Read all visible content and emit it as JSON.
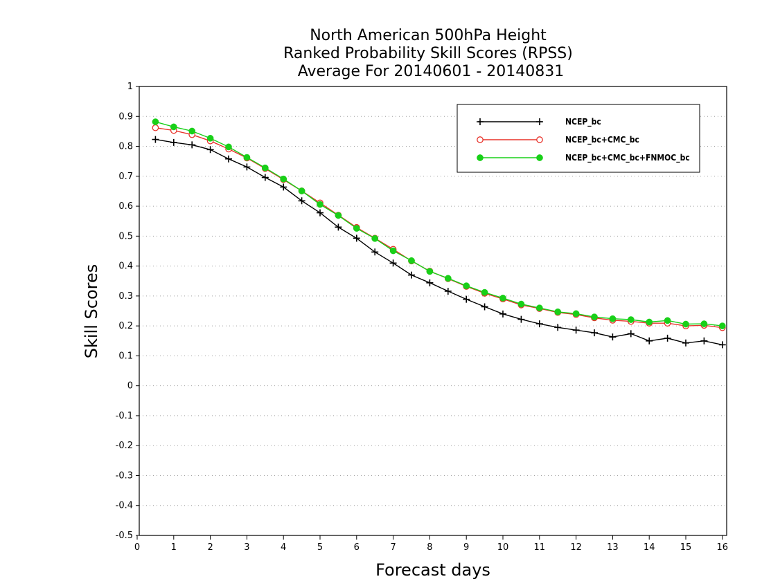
{
  "colors": {
    "background": "#ffffff",
    "axes": "#000000",
    "grid": "#a0a0a0",
    "series": [
      "#000000",
      "#e8322a",
      "#18d018"
    ]
  },
  "chart_data": {
    "type": "line",
    "title": [
      "North American 500hPa Height",
      "Ranked Probability Skill Scores (RPSS)",
      "Average For 20140601 - 20140831"
    ],
    "xlabel": "Forecast days",
    "ylabel": "Skill Scores",
    "xlim": [
      0,
      16.2
    ],
    "ylim": [
      -0.5,
      1
    ],
    "xticks": [
      0,
      1,
      2,
      3,
      4,
      5,
      6,
      7,
      8,
      9,
      10,
      11,
      12,
      13,
      14,
      15,
      16
    ],
    "yticks": [
      -0.5,
      -0.4,
      -0.3,
      -0.2,
      -0.1,
      0,
      0.1,
      0.2,
      0.3,
      0.4,
      0.5,
      0.6,
      0.7,
      0.8,
      0.9,
      1
    ],
    "ytick_labels": [
      "-0.5",
      "-0.4",
      "-0.3",
      "-0.2",
      "-0.1",
      "0",
      "0.1",
      "0.2",
      "0.3",
      "0.4",
      "0.5",
      "0.6",
      "0.7",
      "0.8",
      "0.9",
      "1"
    ],
    "grid": "horizontal dotted",
    "legend_position": "top-right",
    "x": [
      0.5,
      1,
      1.5,
      2,
      2.5,
      3,
      3.5,
      4,
      4.5,
      5,
      5.5,
      6,
      6.5,
      7,
      7.5,
      8,
      8.5,
      9,
      9.5,
      10,
      10.5,
      11,
      11.5,
      12,
      12.5,
      13,
      13.5,
      14,
      14.5,
      15,
      15.5,
      16
    ],
    "series": [
      {
        "name": "NCEP_bc",
        "marker": "plus",
        "values": [
          0.823,
          0.813,
          0.805,
          0.789,
          0.758,
          0.731,
          0.696,
          0.664,
          0.618,
          0.578,
          0.53,
          0.493,
          0.447,
          0.41,
          0.37,
          0.344,
          0.316,
          0.289,
          0.264,
          0.24,
          0.222,
          0.207,
          0.195,
          0.186,
          0.177,
          0.163,
          0.174,
          0.15,
          0.159,
          0.143,
          0.15,
          0.137
        ]
      },
      {
        "name": "NCEP_bc+CMC_bc",
        "marker": "open-circle",
        "values": [
          0.862,
          0.853,
          0.839,
          0.818,
          0.791,
          0.761,
          0.726,
          0.689,
          0.651,
          0.611,
          0.57,
          0.529,
          0.493,
          0.456,
          0.417,
          0.383,
          0.358,
          0.332,
          0.309,
          0.29,
          0.27,
          0.258,
          0.245,
          0.238,
          0.227,
          0.219,
          0.215,
          0.209,
          0.209,
          0.2,
          0.202,
          0.194
        ]
      },
      {
        "name": "NCEP_bc+CMC_bc+FNMOC_bc",
        "marker": "filled-circle",
        "values": [
          0.882,
          0.865,
          0.851,
          0.827,
          0.798,
          0.763,
          0.728,
          0.691,
          0.651,
          0.606,
          0.569,
          0.526,
          0.492,
          0.451,
          0.418,
          0.382,
          0.359,
          0.334,
          0.312,
          0.293,
          0.273,
          0.26,
          0.247,
          0.241,
          0.23,
          0.224,
          0.221,
          0.213,
          0.218,
          0.206,
          0.207,
          0.2
        ]
      }
    ]
  }
}
